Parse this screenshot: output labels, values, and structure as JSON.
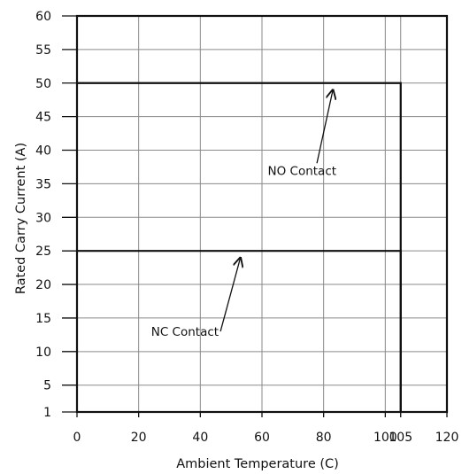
{
  "chart_data": {
    "type": "line",
    "title": "",
    "xlabel": "Ambient Temperature (C)",
    "ylabel": "Rated Carry Current (A)",
    "xlim": [
      0,
      120
    ],
    "ylim": [
      1,
      60
    ],
    "x_ticks": [
      0,
      20,
      40,
      60,
      80,
      100,
      105,
      120
    ],
    "y_ticks": [
      1,
      5,
      10,
      15,
      20,
      25,
      30,
      35,
      40,
      45,
      50,
      55,
      60
    ],
    "grid": true,
    "series": [
      {
        "name": "NO Contact",
        "points": [
          [
            0,
            50
          ],
          [
            105,
            50
          ],
          [
            105,
            1
          ]
        ]
      },
      {
        "name": "NC Contact",
        "points": [
          [
            0,
            25
          ],
          [
            105,
            25
          ],
          [
            105,
            1
          ]
        ]
      }
    ],
    "annotations": [
      {
        "text": "NO Contact",
        "target_x": 83,
        "target_y": 49.5,
        "text_x": 73,
        "text_y": 37
      },
      {
        "text": "NC Contact",
        "target_x": 53,
        "target_y": 24.5,
        "text_x": 35,
        "text_y": 13
      }
    ]
  }
}
